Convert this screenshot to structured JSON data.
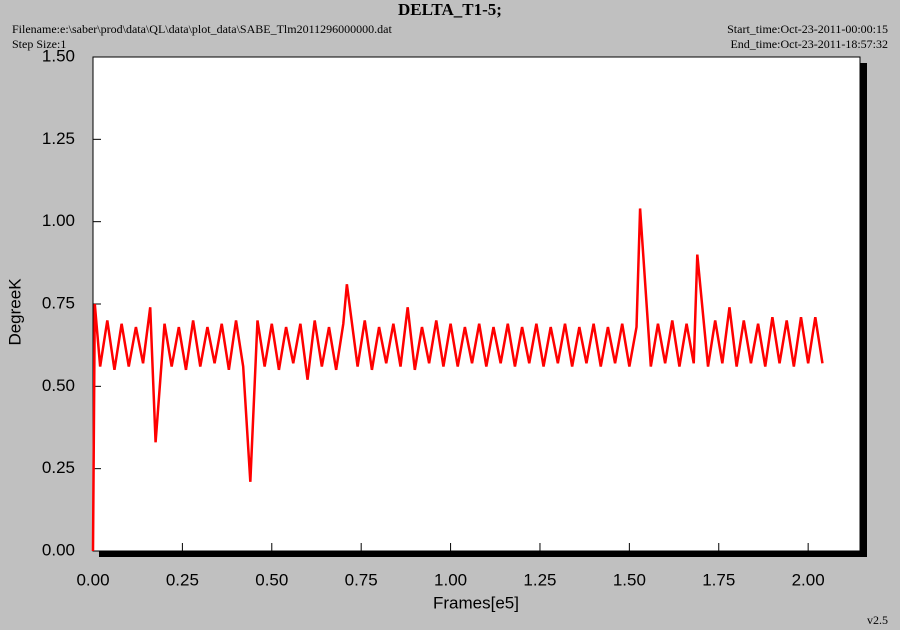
{
  "chart_data": {
    "type": "line",
    "title": "DELTA_T1-5;",
    "filename": "Filename:e:\\saber\\prod\\data\\QL\\data\\plot_data\\SABE_Tlm2011296000000.dat",
    "step_size": "Step Size:1",
    "start_time": "Start_time:Oct-23-2011-00:00:15",
    "end_time": "End_time:Oct-23-2011-18:57:32",
    "version": "v2.5",
    "xlabel": "Frames[e5]",
    "ylabel": "DegreeK",
    "color": "#ff0000",
    "xlim": [
      0,
      2.145
    ],
    "ylim": [
      0,
      1.5
    ],
    "xticks": [
      {
        "value": 0,
        "label": "0.00"
      },
      {
        "value": 0.25,
        "label": "0.25"
      },
      {
        "value": 0.5,
        "label": "0.50"
      },
      {
        "value": 0.75,
        "label": "0.75"
      },
      {
        "value": 1,
        "label": "1.00"
      },
      {
        "value": 1.25,
        "label": "1.25"
      },
      {
        "value": 1.5,
        "label": "1.50"
      },
      {
        "value": 1.75,
        "label": "1.75"
      },
      {
        "value": 2,
        "label": "2.00"
      }
    ],
    "yticks": [
      {
        "value": 0,
        "label": "0.00"
      },
      {
        "value": 0.25,
        "label": "0.25"
      },
      {
        "value": 0.5,
        "label": "0.50"
      },
      {
        "value": 0.75,
        "label": "0.75"
      },
      {
        "value": 1,
        "label": "1.00"
      },
      {
        "value": 1.25,
        "label": "1.25"
      },
      {
        "value": 1.5,
        "label": "1.50"
      }
    ],
    "x": [
      0,
      0.005,
      0.02,
      0.04,
      0.06,
      0.08,
      0.1,
      0.12,
      0.14,
      0.16,
      0.175,
      0.2,
      0.22,
      0.24,
      0.26,
      0.28,
      0.3,
      0.32,
      0.34,
      0.36,
      0.38,
      0.4,
      0.42,
      0.44,
      0.46,
      0.48,
      0.5,
      0.52,
      0.54,
      0.56,
      0.58,
      0.6,
      0.62,
      0.64,
      0.66,
      0.68,
      0.7,
      0.71,
      0.74,
      0.76,
      0.78,
      0.8,
      0.82,
      0.84,
      0.86,
      0.88,
      0.9,
      0.92,
      0.94,
      0.96,
      0.98,
      1,
      1.02,
      1.04,
      1.06,
      1.08,
      1.1,
      1.12,
      1.14,
      1.16,
      1.18,
      1.2,
      1.22,
      1.24,
      1.26,
      1.28,
      1.3,
      1.32,
      1.34,
      1.36,
      1.38,
      1.4,
      1.42,
      1.44,
      1.46,
      1.48,
      1.5,
      1.52,
      1.53,
      1.56,
      1.58,
      1.6,
      1.62,
      1.64,
      1.66,
      1.68,
      1.69,
      1.72,
      1.74,
      1.76,
      1.78,
      1.8,
      1.82,
      1.84,
      1.86,
      1.88,
      1.9,
      1.92,
      1.94,
      1.96,
      1.98,
      2,
      2.02,
      2.04
    ],
    "values": [
      0,
      0.75,
      0.56,
      0.7,
      0.55,
      0.69,
      0.56,
      0.68,
      0.57,
      0.74,
      0.33,
      0.69,
      0.56,
      0.68,
      0.55,
      0.7,
      0.56,
      0.68,
      0.57,
      0.69,
      0.55,
      0.7,
      0.56,
      0.21,
      0.7,
      0.56,
      0.69,
      0.55,
      0.68,
      0.57,
      0.69,
      0.52,
      0.7,
      0.56,
      0.68,
      0.55,
      0.69,
      0.81,
      0.56,
      0.7,
      0.55,
      0.68,
      0.57,
      0.69,
      0.56,
      0.74,
      0.55,
      0.68,
      0.57,
      0.7,
      0.56,
      0.69,
      0.56,
      0.68,
      0.57,
      0.69,
      0.56,
      0.68,
      0.57,
      0.69,
      0.56,
      0.68,
      0.57,
      0.69,
      0.56,
      0.68,
      0.57,
      0.69,
      0.56,
      0.68,
      0.57,
      0.69,
      0.56,
      0.68,
      0.57,
      0.69,
      0.56,
      0.68,
      1.04,
      0.56,
      0.69,
      0.57,
      0.7,
      0.56,
      0.69,
      0.57,
      0.9,
      0.56,
      0.7,
      0.57,
      0.74,
      0.56,
      0.7,
      0.57,
      0.69,
      0.56,
      0.71,
      0.57,
      0.7,
      0.56,
      0.71,
      0.57,
      0.71,
      0.57
    ]
  }
}
